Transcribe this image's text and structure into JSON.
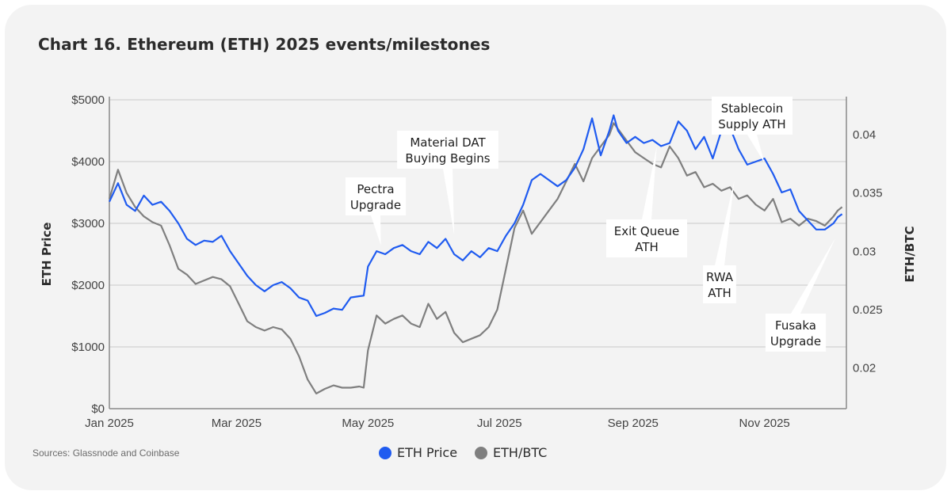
{
  "header": {
    "title": "Chart 16.  Ethereum (ETH) 2025 events/milestones"
  },
  "footer": {
    "source": "Sources: Glassnode and Coinbase"
  },
  "chart_data": {
    "type": "line",
    "title": "Chart 16.  Ethereum (ETH) 2025 events/milestones",
    "ylabel": "ETH Price",
    "y2label": "ETH/BTC",
    "ylim": [
      0,
      5000
    ],
    "y2lim": [
      0.0165,
      0.043
    ],
    "y_ticks": [
      0,
      1000,
      2000,
      3000,
      4000,
      5000
    ],
    "y_tick_labels": [
      "$0",
      "$1000",
      "$2000",
      "$3000",
      "$4000",
      "$5000"
    ],
    "y2_ticks": [
      0.02,
      0.025,
      0.03,
      0.035,
      0.04
    ],
    "y2_tick_labels": [
      "0.02",
      "0.025",
      "0.03",
      "0.035",
      "0.04"
    ],
    "xlim": [
      0,
      342
    ],
    "x_ticks": [
      0,
      59,
      120,
      181,
      243,
      304
    ],
    "x_tick_labels": [
      "Jan 2025",
      "Mar 2025",
      "May 2025",
      "Jul 2025",
      "Sep 2025",
      "Nov 2025"
    ],
    "grid": true,
    "legend_position": "bottom-center",
    "series": [
      {
        "name": "ETH Price",
        "axis": "left",
        "color": "#1f5bf0",
        "x": [
          0,
          4,
          8,
          12,
          16,
          20,
          24,
          28,
          32,
          36,
          40,
          44,
          48,
          52,
          56,
          60,
          64,
          68,
          72,
          76,
          80,
          84,
          88,
          92,
          96,
          100,
          104,
          108,
          112,
          116,
          118,
          120,
          124,
          128,
          132,
          136,
          140,
          144,
          148,
          152,
          156,
          160,
          164,
          168,
          172,
          176,
          180,
          184,
          188,
          192,
          196,
          200,
          204,
          208,
          212,
          216,
          220,
          224,
          228,
          232,
          234,
          236,
          240,
          244,
          248,
          252,
          256,
          260,
          264,
          268,
          272,
          276,
          280,
          284,
          288,
          292,
          296,
          300,
          304,
          308,
          312,
          316,
          320,
          324,
          328,
          332,
          336,
          338,
          340
        ],
        "values": [
          3350,
          3650,
          3300,
          3200,
          3450,
          3300,
          3350,
          3200,
          3000,
          2750,
          2650,
          2720,
          2700,
          2800,
          2550,
          2350,
          2150,
          2000,
          1900,
          2000,
          2050,
          1950,
          1800,
          1750,
          1500,
          1550,
          1620,
          1600,
          1800,
          1820,
          1830,
          2300,
          2550,
          2500,
          2600,
          2650,
          2550,
          2500,
          2700,
          2600,
          2750,
          2500,
          2400,
          2550,
          2450,
          2600,
          2550,
          2800,
          3000,
          3300,
          3700,
          3800,
          3700,
          3600,
          3700,
          3900,
          4200,
          4700,
          4100,
          4500,
          4750,
          4500,
          4300,
          4400,
          4300,
          4350,
          4250,
          4300,
          4650,
          4500,
          4200,
          4400,
          4050,
          4500,
          4550,
          4200,
          3950,
          4000,
          4050,
          3800,
          3500,
          3550,
          3200,
          3050,
          2900,
          2900,
          3000,
          3100,
          3150
        ]
      },
      {
        "name": "ETH/BTC",
        "axis": "right",
        "color": "#7f7f7f",
        "x": [
          0,
          4,
          8,
          12,
          16,
          20,
          24,
          28,
          32,
          36,
          40,
          44,
          48,
          52,
          56,
          60,
          64,
          68,
          72,
          76,
          80,
          84,
          88,
          92,
          96,
          100,
          104,
          108,
          112,
          116,
          118,
          120,
          124,
          128,
          132,
          136,
          140,
          144,
          148,
          152,
          156,
          160,
          164,
          168,
          172,
          176,
          180,
          184,
          188,
          192,
          196,
          200,
          204,
          208,
          212,
          216,
          220,
          224,
          228,
          232,
          234,
          236,
          240,
          244,
          248,
          252,
          256,
          260,
          264,
          268,
          272,
          276,
          280,
          284,
          288,
          292,
          296,
          300,
          304,
          308,
          312,
          316,
          320,
          324,
          328,
          332,
          336,
          338,
          340
        ],
        "values": [
          0.0345,
          0.037,
          0.035,
          0.0338,
          0.033,
          0.0325,
          0.0322,
          0.0305,
          0.0285,
          0.028,
          0.0272,
          0.0275,
          0.0278,
          0.0276,
          0.027,
          0.0255,
          0.024,
          0.0235,
          0.0232,
          0.0235,
          0.0233,
          0.0225,
          0.021,
          0.019,
          0.0178,
          0.0182,
          0.0185,
          0.0183,
          0.0183,
          0.0184,
          0.0183,
          0.0215,
          0.0245,
          0.0238,
          0.0242,
          0.0245,
          0.0238,
          0.0235,
          0.0255,
          0.0242,
          0.0248,
          0.023,
          0.0222,
          0.0225,
          0.0228,
          0.0235,
          0.025,
          0.0285,
          0.032,
          0.0335,
          0.0315,
          0.0325,
          0.0335,
          0.0345,
          0.036,
          0.0375,
          0.036,
          0.038,
          0.039,
          0.04,
          0.041,
          0.0405,
          0.0395,
          0.0385,
          0.038,
          0.0375,
          0.0372,
          0.039,
          0.038,
          0.0365,
          0.0368,
          0.0355,
          0.0358,
          0.0352,
          0.0355,
          0.0345,
          0.0348,
          0.034,
          0.0335,
          0.0345,
          0.0325,
          0.0328,
          0.0322,
          0.0328,
          0.0326,
          0.0322,
          0.033,
          0.0335,
          0.0338
        ]
      }
    ],
    "annotations": [
      {
        "text": [
          "Pectra",
          "Upgrade"
        ],
        "x": 126
      },
      {
        "text": [
          "Material DAT",
          "Buying Begins"
        ],
        "x": 160
      },
      {
        "text": [
          "Exit Queue",
          "ATH"
        ],
        "x": 254
      },
      {
        "text": [
          "Stablecoin",
          "Supply ATH"
        ],
        "x": 304
      },
      {
        "text": [
          "RWA",
          "ATH"
        ],
        "x": 290
      },
      {
        "text": [
          "Fusaka",
          "Upgrade"
        ],
        "x": 337
      }
    ]
  }
}
